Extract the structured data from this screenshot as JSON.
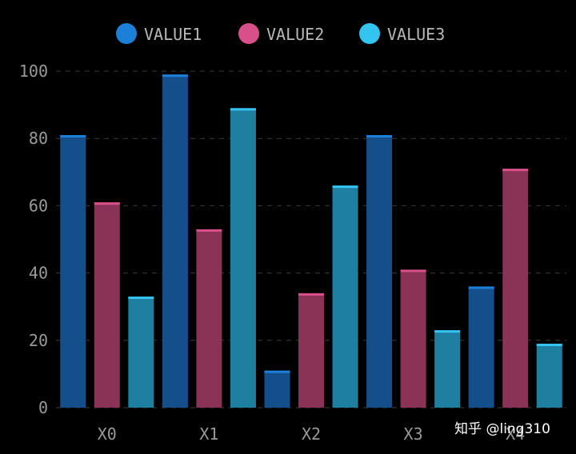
{
  "colors": {
    "background": "#000000",
    "grid": "#3a3a3a",
    "axis_text": "#9a9a9a",
    "legend_text": "#b8b8b8",
    "series": [
      "#1c80d8",
      "#d8508a",
      "#33c4f0"
    ],
    "bar_fill": [
      "#144f8c",
      "#8a3356",
      "#1f7fa0"
    ]
  },
  "chart_data": {
    "type": "bar",
    "categories": [
      "X0",
      "X1",
      "X2",
      "X3",
      "X4"
    ],
    "x_tick_labels": [
      "X0",
      "X1",
      "X2",
      "X3",
      "X4"
    ],
    "ylim": [
      0,
      100
    ],
    "y_ticks": [
      "0",
      "20",
      "40",
      "60",
      "80",
      "100"
    ],
    "grid": "dashed horizontal",
    "legend_position": "top-center",
    "bar_sequence": [
      {
        "series": 0,
        "value": 81
      },
      {
        "series": 1,
        "value": 61
      },
      {
        "series": 2,
        "value": 33
      },
      {
        "series": 0,
        "value": 99
      },
      {
        "series": 1,
        "value": 53
      },
      {
        "series": 2,
        "value": 89
      },
      {
        "series": 0,
        "value": 11
      },
      {
        "series": 1,
        "value": 34
      },
      {
        "series": 2,
        "value": 66
      },
      {
        "series": 0,
        "value": 81
      },
      {
        "series": 1,
        "value": 41
      },
      {
        "series": 2,
        "value": 23
      },
      {
        "series": 0,
        "value": 36
      },
      {
        "series": 1,
        "value": 71
      },
      {
        "series": 2,
        "value": 19
      }
    ],
    "series": [
      {
        "name": "VALUE1"
      },
      {
        "name": "VALUE2"
      },
      {
        "name": "VALUE3"
      }
    ]
  },
  "watermark": "知乎 @ling310"
}
